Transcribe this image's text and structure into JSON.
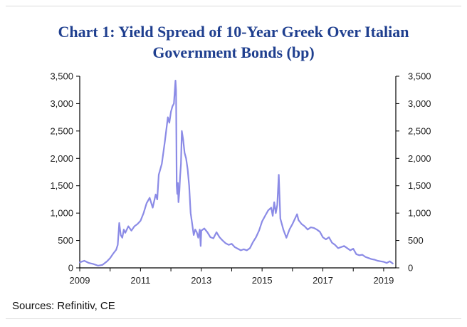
{
  "chart_data": {
    "type": "line",
    "title_line1": "Chart 1: Yield Spread of 10-Year Greek Over Italian",
    "title_line2": "Government Bonds (bp)",
    "source": "Sources: Refinitiv, CE",
    "xlim": [
      2009,
      2019.4
    ],
    "ylim": [
      0,
      3500
    ],
    "x_ticks": [
      2009,
      2011,
      2013,
      2015,
      2017,
      2019
    ],
    "x_tick_labels": [
      "2009",
      "2011",
      "2013",
      "2015",
      "2017",
      "2019"
    ],
    "y_ticks": [
      0,
      500,
      1000,
      1500,
      2000,
      2500,
      3000,
      3500
    ],
    "y_tick_labels": [
      "0",
      "500",
      "1,000",
      "1,500",
      "2,000",
      "2,500",
      "3,000",
      "3,500"
    ],
    "grid": false,
    "colors": {
      "series": "#8b8be6",
      "title": "#1f3f8f",
      "axis": "#000000"
    },
    "series": [
      {
        "x": [
          2009.0,
          2009.15,
          2009.3,
          2009.45,
          2009.6,
          2009.75,
          2009.9,
          2010.0,
          2010.1,
          2010.2,
          2010.25,
          2010.3,
          2010.35,
          2010.4,
          2010.45,
          2010.5,
          2010.6,
          2010.7,
          2010.8,
          2010.9,
          2011.0,
          2011.1,
          2011.2,
          2011.3,
          2011.4,
          2011.5,
          2011.55,
          2011.6,
          2011.7,
          2011.8,
          2011.9,
          2011.95,
          2012.0,
          2012.05,
          2012.1,
          2012.15,
          2012.17,
          2012.19,
          2012.21,
          2012.23,
          2012.25,
          2012.28,
          2012.3,
          2012.33,
          2012.36,
          2012.4,
          2012.45,
          2012.5,
          2012.55,
          2012.6,
          2012.65,
          2012.7,
          2012.75,
          2012.8,
          2012.85,
          2012.9,
          2012.95,
          2012.98,
          2013.0,
          2013.1,
          2013.2,
          2013.3,
          2013.4,
          2013.5,
          2013.6,
          2013.7,
          2013.8,
          2013.9,
          2014.0,
          2014.1,
          2014.2,
          2014.3,
          2014.4,
          2014.5,
          2014.6,
          2014.7,
          2014.8,
          2014.9,
          2015.0,
          2015.1,
          2015.2,
          2015.3,
          2015.35,
          2015.4,
          2015.45,
          2015.5,
          2015.55,
          2015.6,
          2015.65,
          2015.7,
          2015.8,
          2015.9,
          2016.0,
          2016.1,
          2016.15,
          2016.2,
          2016.3,
          2016.4,
          2016.5,
          2016.6,
          2016.7,
          2016.8,
          2016.9,
          2017.0,
          2017.1,
          2017.2,
          2017.3,
          2017.4,
          2017.5,
          2017.6,
          2017.7,
          2017.8,
          2017.9,
          2018.0,
          2018.1,
          2018.2,
          2018.3,
          2018.4,
          2018.5,
          2018.6,
          2018.7,
          2018.8,
          2018.9,
          2019.0,
          2019.1,
          2019.2,
          2019.3
        ],
        "values": [
          100,
          130,
          90,
          70,
          40,
          55,
          120,
          180,
          260,
          330,
          420,
          820,
          600,
          550,
          700,
          640,
          760,
          680,
          760,
          800,
          860,
          1000,
          1180,
          1280,
          1100,
          1340,
          1250,
          1700,
          1900,
          2300,
          2750,
          2650,
          2850,
          2950,
          3000,
          3420,
          3250,
          1500,
          1350,
          1550,
          1200,
          1400,
          1650,
          1900,
          2500,
          2350,
          2100,
          2000,
          1800,
          1500,
          1000,
          800,
          600,
          700,
          650,
          550,
          700,
          400,
          680,
          720,
          650,
          560,
          540,
          650,
          560,
          500,
          450,
          420,
          440,
          380,
          350,
          320,
          340,
          320,
          360,
          470,
          560,
          680,
          850,
          950,
          1050,
          1100,
          950,
          1200,
          1000,
          1150,
          1700,
          900,
          800,
          700,
          550,
          700,
          800,
          920,
          980,
          870,
          800,
          760,
          700,
          740,
          730,
          700,
          660,
          560,
          520,
          560,
          460,
          420,
          360,
          380,
          400,
          360,
          320,
          350,
          250,
          230,
          240,
          200,
          180,
          160,
          150,
          130,
          120,
          110,
          90,
          120,
          80
        ]
      }
    ]
  }
}
